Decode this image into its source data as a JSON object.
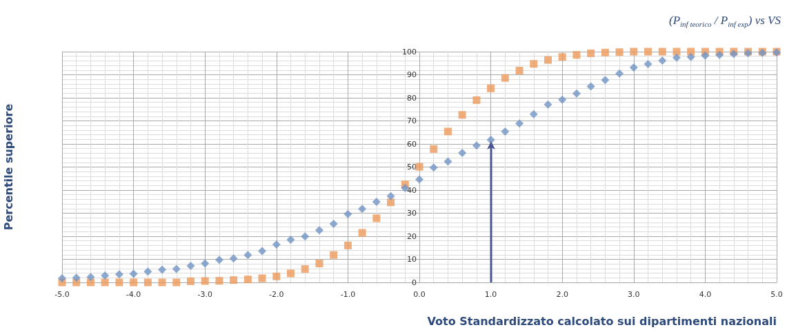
{
  "chart_data": {
    "type": "scatter",
    "title": "(P$_{inf teorico}$ / P$_{inf exp}$) vs VS",
    "xlabel": "Voto Standardizzato calcolato sui dipartimenti nazionali",
    "ylabel": "Percentile superiore",
    "x": [
      -5.0,
      -4.8,
      -4.6,
      -4.4,
      -4.2,
      -4.0,
      -3.8,
      -3.6,
      -3.4,
      -3.2,
      -3.0,
      -2.8,
      -2.6,
      -2.4,
      -2.2,
      -2.0,
      -1.8,
      -1.6,
      -1.4,
      -1.2,
      -1.0,
      -0.8,
      -0.6,
      -0.4,
      -0.2,
      0.0,
      0.2,
      0.4,
      0.6,
      0.8,
      1.0,
      1.2,
      1.4,
      1.6,
      1.8,
      2.0,
      2.2,
      2.4,
      2.6,
      2.8,
      3.0,
      3.2,
      3.4,
      3.6,
      3.8,
      4.0,
      4.2,
      4.4,
      4.6,
      4.8,
      5.0
    ],
    "series": [
      {
        "color": "#7094c4",
        "marker": "diamond",
        "values": [
          1.8,
          2.0,
          2.3,
          3.0,
          3.5,
          3.7,
          4.7,
          5.5,
          5.8,
          7.2,
          8.2,
          9.8,
          10.4,
          11.9,
          13.6,
          16.4,
          18.5,
          19.9,
          22.6,
          25.4,
          29.6,
          31.9,
          34.9,
          37.4,
          40.9,
          44.6,
          49.8,
          52.4,
          56.1,
          59.3,
          61.8,
          65.4,
          68.9,
          72.9,
          77.1,
          79.2,
          81.9,
          84.9,
          87.7,
          90.5,
          93.1,
          94.6,
          96.1,
          97.4,
          97.7,
          98.3,
          98.6,
          99.0,
          99.3,
          99.5,
          99.6
        ]
      },
      {
        "color": "#ed9a5c",
        "marker": "square",
        "values": [
          0,
          0,
          0,
          0,
          0,
          0,
          0,
          0,
          0,
          0.5,
          0.6,
          0.7,
          1.0,
          1.3,
          1.8,
          2.6,
          3.9,
          5.8,
          8.2,
          11.9,
          16.0,
          21.5,
          27.8,
          34.7,
          42.5,
          50.1,
          57.8,
          65.4,
          72.6,
          79.0,
          84.1,
          88.6,
          91.8,
          94.7,
          96.4,
          97.7,
          98.6,
          99.3,
          99.6,
          99.8,
          100,
          100,
          100,
          100,
          100,
          100,
          100,
          100,
          100,
          100,
          100
        ]
      }
    ],
    "xlim": [
      -5,
      5
    ],
    "xticks": [
      {
        "value": -5,
        "label": "-5.0"
      },
      {
        "value": -4,
        "label": "-4.0"
      },
      {
        "value": -3,
        "label": "-3.0"
      },
      {
        "value": -2,
        "label": "-2.0"
      },
      {
        "value": -1,
        "label": "-1.0"
      },
      {
        "value": 0,
        "label": "0.0"
      },
      {
        "value": 1,
        "label": "1.0"
      },
      {
        "value": 2,
        "label": "2.0"
      },
      {
        "value": 3,
        "label": "3.0"
      },
      {
        "value": 4,
        "label": "4.0"
      },
      {
        "value": 5,
        "label": "5.0"
      }
    ],
    "ylim": [
      0,
      100
    ],
    "yticks": [
      0,
      10,
      20,
      30,
      40,
      50,
      60,
      70,
      80,
      90,
      100
    ],
    "ref_lines": [
      {
        "axis": "x",
        "value": 1.0,
        "color": "#4a5690"
      }
    ],
    "grid": true
  }
}
